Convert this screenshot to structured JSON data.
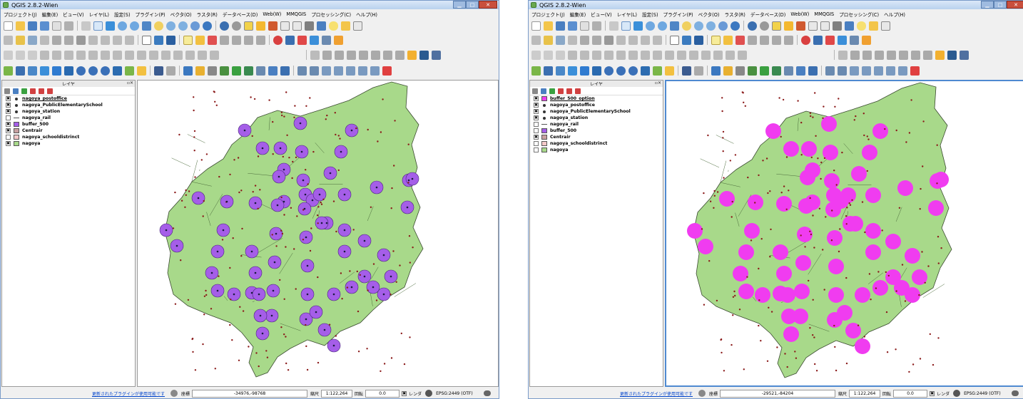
{
  "colors": {
    "map_fill": "#a8d98a",
    "buffer_left": "#a55ee8",
    "buffer_right": "#f03cf0",
    "point": "#8b1a1a",
    "district_line": "#4a6a3a"
  },
  "windows": [
    {
      "id": "left",
      "title": "QGIS 2.8.2-Wien",
      "menus": [
        "プロジェクト(J)",
        "編集(E)",
        "ビュー(V)",
        "レイヤ(L)",
        "設定(S)",
        "プラグイン(P)",
        "ベクタ(O)",
        "ラスタ(R)",
        "データベース(D)",
        "Web(W)",
        "MMQGIS",
        "プロセッシング(C)",
        "ヘルプ(H)"
      ],
      "layers_panel_title": "レイヤ",
      "layers": [
        {
          "name": "nagoya_postoffice",
          "checked": "✖",
          "symbol": "point",
          "color": "#333333",
          "selected": true
        },
        {
          "name": "nagoya_PublicElementarySchool",
          "checked": "✖",
          "symbol": "point",
          "color": "#333333"
        },
        {
          "name": "nagoya_station",
          "checked": "✖",
          "symbol": "point",
          "color": "#333333"
        },
        {
          "name": "nagoya_rail",
          "checked": "",
          "symbol": "line",
          "color": "#555555"
        },
        {
          "name": "buffer_500",
          "checked": "✖",
          "symbol": "fill",
          "color": "#a55ee8"
        },
        {
          "name": "Centrair",
          "checked": "✖",
          "symbol": "fill",
          "color": "#c8a0a0"
        },
        {
          "name": "nagoya_schooldistrinct",
          "checked": "",
          "symbol": "fill",
          "color": "#f4c8c8"
        },
        {
          "name": "nagoya",
          "checked": "✖",
          "symbol": "fill",
          "color": "#a8d98a"
        }
      ],
      "status": {
        "plugin_link": "更新されたプラグインが使用可能です",
        "coord_label": "座標",
        "coord_value": "-34976,-98768",
        "scale_label": "縮尺",
        "scale_value": "1:122,264",
        "rotation_label": "回転",
        "rotation_value": "0.0",
        "render_label": "レンダ",
        "render_checked": "✖",
        "crs": "EPSG:2449 (OTF)"
      }
    },
    {
      "id": "right",
      "title": "QGIS 2.8.2-Wien",
      "menus": [
        "プロジェクト(J)",
        "編集(E)",
        "ビュー(V)",
        "レイヤ(L)",
        "設定(S)",
        "プラグイン(P)",
        "ベクタ(O)",
        "ラスタ(R)",
        "データベース(D)",
        "Web(W)",
        "MMQGIS",
        "プロセッシング(C)",
        "ヘルプ(H)"
      ],
      "layers_panel_title": "レイヤ",
      "layers": [
        {
          "name": "buffer_500_option",
          "checked": "✖",
          "symbol": "fill",
          "color": "#f03cf0",
          "selected": true
        },
        {
          "name": "nagoya_postoffice",
          "checked": "✖",
          "symbol": "point",
          "color": "#333333"
        },
        {
          "name": "nagoya_PublicElementarySchool",
          "checked": "✖",
          "symbol": "point",
          "color": "#333333"
        },
        {
          "name": "nagoya_station",
          "checked": "✖",
          "symbol": "point",
          "color": "#333333"
        },
        {
          "name": "nagoya_rail",
          "checked": "",
          "symbol": "line",
          "color": "#555555"
        },
        {
          "name": "buffer_500",
          "checked": "",
          "symbol": "fill",
          "color": "#a55ee8"
        },
        {
          "name": "Centrair",
          "checked": "✖",
          "symbol": "fill",
          "color": "#c8a0a0"
        },
        {
          "name": "nagoya_schooldistrinct",
          "checked": "",
          "symbol": "fill",
          "color": "#f4c8c8"
        },
        {
          "name": "nagoya",
          "checked": "",
          "symbol": "fill",
          "color": "#a8d98a"
        }
      ],
      "status": {
        "plugin_link": "更新されたプラグインが使用可能です",
        "coord_label": "座標",
        "coord_value": "-29521,-84204",
        "scale_label": "縮尺",
        "scale_value": "1:122,264",
        "rotation_label": "回転",
        "rotation_value": "0.0",
        "render_label": "レンダ",
        "render_checked": "✖",
        "crs": "EPSG:2449 (OTF)"
      }
    }
  ]
}
